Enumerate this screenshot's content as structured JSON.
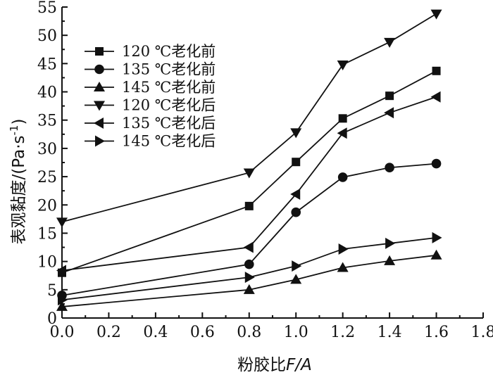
{
  "chart_data": {
    "type": "line",
    "xlabel_prefix": "粉胶比",
    "xlabel_italic": "F/A",
    "ylabel_text": "表观黏度/(Pa·s",
    "ylabel_sup": "-1",
    "ylabel_close": ")",
    "xlim": [
      0.0,
      1.8
    ],
    "ylim": [
      0,
      55
    ],
    "xticks": [
      "0.0",
      "0.2",
      "0.4",
      "0.6",
      "0.8",
      "1.0",
      "1.2",
      "1.4",
      "1.6",
      "1.8"
    ],
    "yticks": [
      "0",
      "5",
      "10",
      "15",
      "20",
      "25",
      "30",
      "35",
      "40",
      "45",
      "50",
      "55"
    ],
    "x": [
      0.0,
      0.8,
      1.0,
      1.2,
      1.4,
      1.6
    ],
    "series": [
      {
        "name": "120 ℃老化前",
        "marker": "square",
        "values": [
          8.0,
          19.8,
          27.6,
          35.3,
          39.3,
          43.7
        ]
      },
      {
        "name": "135 ℃老化前",
        "marker": "circle",
        "values": [
          4.0,
          9.5,
          18.7,
          24.9,
          26.6,
          27.3
        ]
      },
      {
        "name": "145 ℃老化前",
        "marker": "triangle-up",
        "values": [
          2.0,
          5.0,
          6.8,
          8.9,
          10.1,
          11.1
        ]
      },
      {
        "name": "120 ℃老化后",
        "marker": "triangle-down",
        "values": [
          17.0,
          25.7,
          32.8,
          44.8,
          48.8,
          53.8
        ]
      },
      {
        "name": "135 ℃老化后",
        "marker": "triangle-left",
        "values": [
          8.4,
          12.5,
          21.9,
          32.7,
          36.3,
          39.1
        ]
      },
      {
        "name": "145 ℃老化后",
        "marker": "triangle-right",
        "values": [
          3.2,
          7.2,
          9.2,
          12.2,
          13.2,
          14.2
        ]
      }
    ],
    "legend_position": "top-left",
    "grid": false,
    "colors": {
      "ink": "#111111",
      "background": "#ffffff"
    }
  }
}
